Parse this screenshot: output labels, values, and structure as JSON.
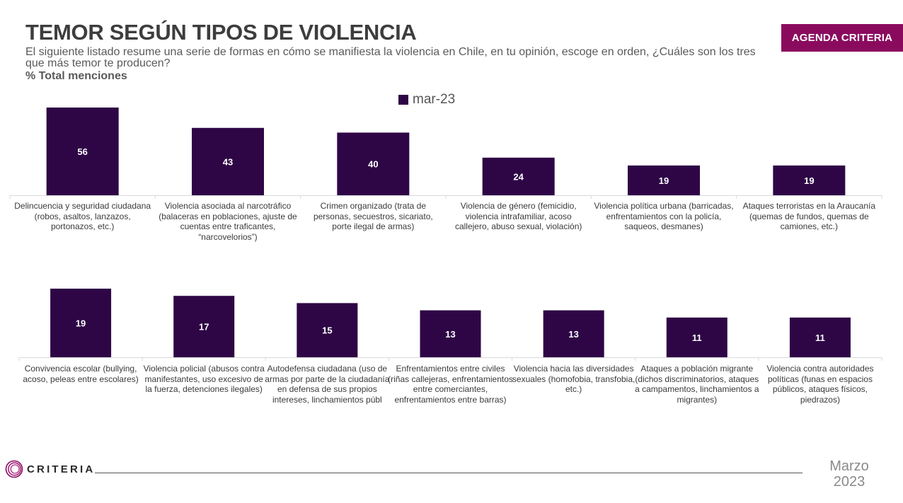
{
  "header": {
    "title": "TEMOR SEGÚN TIPOS DE VIOLENCIA",
    "subtitle": "El siguiente listado resume una serie de formas en cómo se manifiesta la violencia en Chile, en tu opinión, escoge en orden, ¿Cuáles son los tres que más temor te producen?",
    "measure": "% Total menciones",
    "brand_badge": "AGENDA CRITERIA"
  },
  "footer": {
    "logo_text": "CRITERIA",
    "date_month": "Marzo",
    "date_year": "2023"
  },
  "colors": {
    "bar": "#2e0646",
    "bar_label": "#ffffff",
    "badge": "#8a0b5e",
    "axis": "#d9d9d9"
  },
  "chart_data": [
    {
      "type": "bar",
      "series": [
        {
          "name": "mar-23",
          "values": [
            56,
            43,
            40,
            24,
            19,
            19
          ]
        }
      ],
      "categories": [
        "Delincuencia y seguridad ciudadana (robos, asaltos, lanzazos, portonazos, etc.)",
        "Violencia asociada al narcotráfico (balaceras en poblaciones, ajuste de cuentas entre traficantes, “narcovelorios”)",
        "Crimen organizado (trata de personas, secuestros, sicariato, porte ilegal de armas)",
        "Violencia de género (femicidio, violencia intrafamiliar, acoso callejero, abuso sexual, violación)",
        "Violencia política urbana (barricadas, enfrentamientos con la policía, saqueos, desmanes)",
        "Ataques terroristas en la Araucanía (quemas de fundos, quemas de camiones, etc.)"
      ],
      "data_labels": [
        "56",
        "43",
        "40",
        "24",
        "19",
        "19"
      ],
      "ylim": [
        0,
        56
      ],
      "grid": false,
      "legend": "top-center"
    },
    {
      "type": "bar",
      "series": [
        {
          "name": "mar-23",
          "values": [
            19,
            17,
            15,
            13,
            13,
            11,
            11
          ]
        }
      ],
      "categories": [
        "Convivencia escolar (bullying, acoso, peleas entre escolares)",
        "Violencia policial (abusos contra manifestantes, uso excesivo de la fuerza, detenciones ilegales)",
        "Autodefensa ciudadana (uso de armas por parte de la ciudadanía en defensa de sus propios intereses, linchamientos públ",
        "Enfrentamientos entre civiles (riñas callejeras, enfrentamientos entre comerciantes, enfrentamientos entre barras)",
        "Violencia hacia las diversidades sexuales (homofobia, transfobia, etc.)",
        "Ataques a población migrante (dichos discriminatorios, ataques a campamentos, linchamientos a migrantes)",
        "Violencia contra autoridades políticas (funas en espacios públicos, ataques físicos, piedrazos)"
      ],
      "data_labels": [
        "19",
        "17",
        "15",
        "13",
        "13",
        "11",
        "11"
      ],
      "ylim": [
        0,
        19
      ],
      "grid": false,
      "legend": "none"
    }
  ]
}
